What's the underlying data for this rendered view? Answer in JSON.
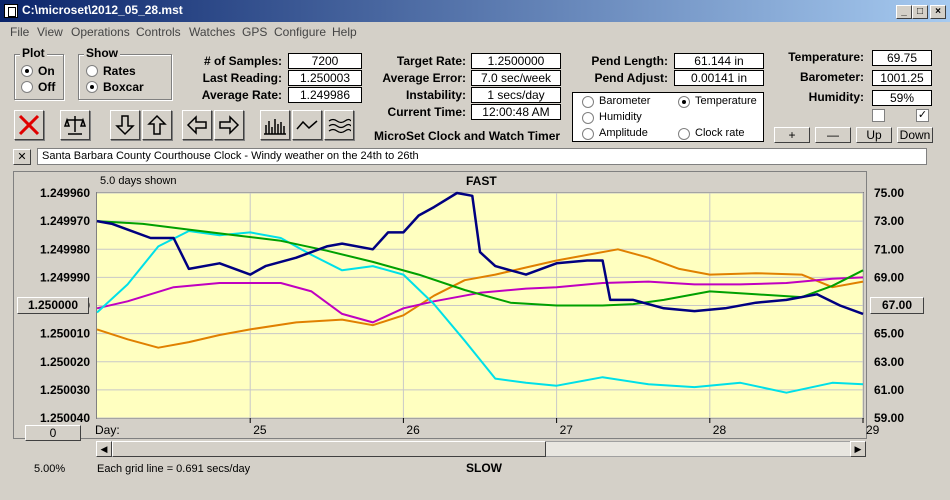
{
  "window": {
    "title": "C:\\microset\\2012_05_28.mst"
  },
  "menu": [
    "File",
    "View",
    "Operations",
    "Controls",
    "Watches",
    "GPS",
    "Configure",
    "Help"
  ],
  "plot_group": {
    "title": "Plot",
    "on_label": "On",
    "off_label": "Off",
    "selected": "On"
  },
  "show_group": {
    "title": "Show",
    "rates_label": "Rates",
    "boxcar_label": "Boxcar",
    "selected": "Boxcar"
  },
  "stats": {
    "samples_label": "# of Samples:",
    "samples": "7200",
    "last_reading_label": "Last Reading:",
    "last_reading": "1.250003",
    "average_rate_label": "Average Rate:",
    "average_rate": "1.249986"
  },
  "rates": {
    "target_rate_label": "Target Rate:",
    "target_rate": "1.2500000",
    "average_error_label": "Average Error:",
    "average_error": "7.0 sec/week",
    "instability_label": "Instability:",
    "instability": "1 secs/day",
    "current_time_label": "Current Time:",
    "current_time": "12:00:48 AM"
  },
  "pendulum": {
    "length_label": "Pend Length:",
    "length": "61.144 in",
    "adjust_label": "Pend Adjust:",
    "adjust": "0.00141 in"
  },
  "sensor_select": {
    "options": [
      {
        "label": "Barometer",
        "color": "#e08000"
      },
      {
        "label": "Temperature",
        "color": "#00a000"
      },
      {
        "label": "Humidity",
        "color": "#c000c0"
      },
      {
        "label": "Amplitude",
        "color": "#00c0e0"
      },
      {
        "label": "Clock rate",
        "color": "#000000"
      }
    ],
    "selected": "Temperature"
  },
  "environment": {
    "temperature_label": "Temperature:",
    "temperature": "69.75",
    "barometer_label": "Barometer:",
    "barometer": "1001.25",
    "humidity_label": "Humidity:",
    "humidity": "59%"
  },
  "right_buttons": {
    "plus": "+",
    "minus": "—",
    "up": "Up",
    "down": "Down"
  },
  "app_caption": "MicroSet Clock and Watch Timer",
  "note": {
    "close": "✕",
    "text": "Santa Barbara County Courthouse Clock - Windy weather on the 24th to 26th"
  },
  "toolbar_icons": [
    "close-x-icon",
    "balance-scale-icon",
    "arrow-down-icon",
    "arrow-up-icon",
    "arrow-left-icon",
    "arrow-right-icon",
    "bar-graph-icon",
    "line-graph-icon",
    "wave-graph-icon"
  ],
  "chart_header": {
    "days_shown": "5.0 days shown",
    "top_label": "FAST",
    "bottom_label": "SLOW"
  },
  "chart_footer": {
    "offset_button": "0",
    "percent": "5.00%",
    "grid_note": "Each grid line = 0.691 secs/day",
    "day_label": "Day:"
  },
  "left_marker": "1.250000",
  "right_marker": "67.00",
  "chart_data": {
    "type": "line",
    "x_label": "Day:",
    "x_ticks": [
      "25",
      "26",
      "27",
      "28",
      "29"
    ],
    "y_left_ticks": [
      "1.249960",
      "1.249970",
      "1.249980",
      "1.249990",
      "1.250000",
      "1.250010",
      "1.250020",
      "1.250030",
      "1.250040"
    ],
    "y_right_ticks": [
      "75.00",
      "73.00",
      "71.00",
      "69.00",
      "67.00",
      "65.00",
      "63.00",
      "61.00",
      "59.00"
    ],
    "x_range": [
      24.0,
      29.0
    ],
    "y_left_range": [
      1.24996,
      1.25004
    ],
    "y_right_range": [
      59,
      75
    ],
    "grid": true,
    "series": [
      {
        "name": "Clock rate",
        "color": "#000080",
        "axis": "left",
        "x": [
          24.0,
          24.1,
          24.2,
          24.35,
          24.5,
          24.6,
          24.8,
          25.0,
          25.1,
          25.3,
          25.5,
          25.6,
          25.8,
          25.9,
          26.0,
          26.1,
          26.2,
          26.35,
          26.45,
          26.5,
          26.6,
          26.8,
          27.0,
          27.2,
          27.3,
          27.35,
          27.5,
          27.7,
          27.9,
          28.1,
          28.3,
          28.5,
          28.7,
          28.85,
          29.0
        ],
        "y": [
          1.24997,
          1.249971,
          1.249973,
          1.249976,
          1.249976,
          1.249987,
          1.249985,
          1.249989,
          1.249986,
          1.249983,
          1.249979,
          1.249978,
          1.24998,
          1.249974,
          1.249974,
          1.249968,
          1.249965,
          1.24996,
          1.249961,
          1.249981,
          1.249986,
          1.249989,
          1.249985,
          1.249984,
          1.249984,
          1.249998,
          1.249998,
          1.250001,
          1.250002,
          1.250001,
          1.249999,
          1.249998,
          1.249996,
          1.25,
          1.250003
        ]
      },
      {
        "name": "Temperature",
        "color": "#00a000",
        "axis": "right",
        "x": [
          24.0,
          24.3,
          24.6,
          24.9,
          25.2,
          25.5,
          25.8,
          26.1,
          26.4,
          26.7,
          27.0,
          27.3,
          27.5,
          27.7,
          28.0,
          28.3,
          28.6,
          28.8,
          29.0
        ],
        "y": [
          73.0,
          72.8,
          72.4,
          72.0,
          71.6,
          70.9,
          70.1,
          69.2,
          68.1,
          67.2,
          67.0,
          67.0,
          67.1,
          67.4,
          68.0,
          67.8,
          67.6,
          68.4,
          69.5
        ]
      },
      {
        "name": "Barometer",
        "color": "#e08000",
        "axis": "right",
        "x": [
          24.0,
          24.2,
          24.4,
          24.6,
          24.8,
          25.0,
          25.3,
          25.6,
          25.8,
          26.0,
          26.2,
          26.4,
          26.6,
          26.8,
          27.0,
          27.2,
          27.4,
          27.6,
          27.8,
          28.0,
          28.3,
          28.6,
          28.8,
          29.0
        ],
        "y": [
          65.3,
          64.6,
          64.0,
          64.4,
          64.9,
          65.3,
          65.8,
          66.0,
          65.6,
          66.3,
          67.7,
          68.8,
          69.2,
          69.7,
          70.2,
          70.6,
          71.0,
          70.4,
          69.6,
          69.2,
          69.3,
          69.2,
          68.3,
          68.7
        ]
      },
      {
        "name": "Humidity",
        "color": "#c000c0",
        "axis": "right",
        "x": [
          24.0,
          24.2,
          24.5,
          24.8,
          25.0,
          25.2,
          25.4,
          25.6,
          25.8,
          26.0,
          26.2,
          26.5,
          26.8,
          27.0,
          27.3,
          27.6,
          27.9,
          28.2,
          28.5,
          28.8,
          29.0
        ],
        "y": [
          66.8,
          67.3,
          68.3,
          68.6,
          68.6,
          68.6,
          68.0,
          66.4,
          65.8,
          66.8,
          67.3,
          67.9,
          68.2,
          68.3,
          68.6,
          68.7,
          68.5,
          68.5,
          68.6,
          68.9,
          69.0
        ]
      },
      {
        "name": "Amplitude",
        "color": "#00e0e8",
        "axis": "right",
        "x": [
          24.0,
          24.2,
          24.4,
          24.6,
          24.8,
          25.0,
          25.2,
          25.4,
          25.6,
          25.8,
          26.0,
          26.2,
          26.4,
          26.6,
          26.8,
          27.0,
          27.3,
          27.6,
          27.9,
          28.2,
          28.5,
          28.8,
          29.0
        ],
        "y": [
          66.5,
          68.5,
          71.2,
          72.3,
          72.0,
          72.2,
          71.8,
          70.6,
          69.5,
          69.8,
          69.2,
          67.1,
          64.5,
          61.8,
          61.5,
          61.3,
          61.9,
          61.4,
          61.2,
          61.5,
          60.8,
          61.5,
          61.4
        ]
      }
    ]
  }
}
